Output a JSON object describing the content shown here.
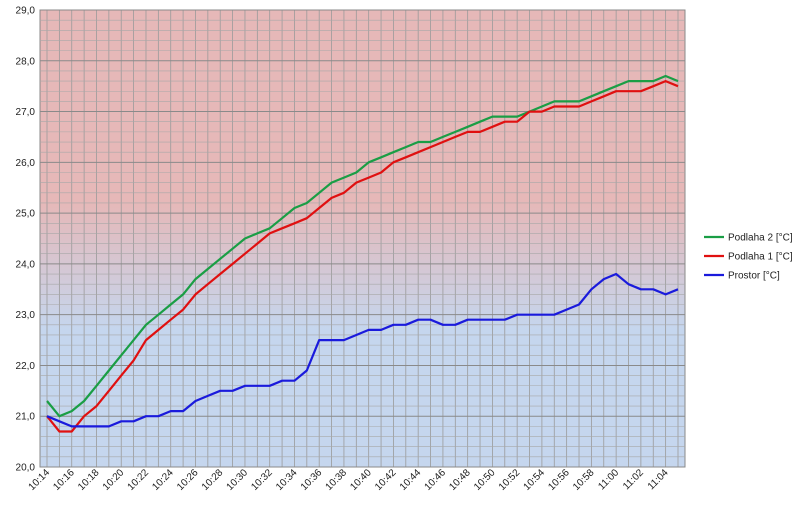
{
  "chart_data": {
    "type": "line",
    "title": "",
    "xlabel": "",
    "ylabel": "",
    "ylim": [
      20.0,
      29.0
    ],
    "y_ticks": [
      "20,0",
      "21,0",
      "22,0",
      "23,0",
      "24,0",
      "25,0",
      "26,0",
      "27,0",
      "28,0",
      "29,0"
    ],
    "x": [
      "10:14",
      "10:15",
      "10:16",
      "10:17",
      "10:18",
      "10:19",
      "10:20",
      "10:21",
      "10:22",
      "10:23",
      "10:24",
      "10:25",
      "10:26",
      "10:27",
      "10:28",
      "10:29",
      "10:30",
      "10:31",
      "10:32",
      "10:33",
      "10:34",
      "10:35",
      "10:36",
      "10:37",
      "10:38",
      "10:39",
      "10:40",
      "10:41",
      "10:42",
      "10:43",
      "10:44",
      "10:45",
      "10:46",
      "10:47",
      "10:48",
      "10:49",
      "10:50",
      "10:51",
      "10:52",
      "10:53",
      "10:54",
      "10:55",
      "10:56",
      "10:57",
      "10:58",
      "10:59",
      "11:00",
      "11:01",
      "11:02",
      "11:03",
      "11:04",
      "11:05"
    ],
    "x_tick_labels": [
      "10:14",
      "10:16",
      "10:18",
      "10:20",
      "10:22",
      "10:24",
      "10:26",
      "10:28",
      "10:30",
      "10:32",
      "10:34",
      "10:36",
      "10:38",
      "10:40",
      "10:42",
      "10:44",
      "10:46",
      "10:48",
      "10:50",
      "10:52",
      "10:54",
      "10:56",
      "10:58",
      "11:00",
      "11:02",
      "11:04"
    ],
    "grid": true,
    "background_gradient": {
      "top": "#e6b8b8",
      "bottom": "#c5d6ee"
    },
    "legend_position": "right",
    "series": [
      {
        "name": "Podlaha 2 [°C]",
        "color": "#1a9e45",
        "values": [
          21.3,
          21.0,
          21.1,
          21.3,
          21.6,
          21.9,
          22.2,
          22.5,
          22.8,
          23.0,
          23.2,
          23.4,
          23.7,
          23.9,
          24.1,
          24.3,
          24.5,
          24.6,
          24.7,
          24.9,
          25.1,
          25.2,
          25.4,
          25.6,
          25.7,
          25.8,
          26.0,
          26.1,
          26.2,
          26.3,
          26.4,
          26.4,
          26.5,
          26.6,
          26.7,
          26.8,
          26.9,
          26.9,
          26.9,
          27.0,
          27.1,
          27.2,
          27.2,
          27.2,
          27.3,
          27.4,
          27.5,
          27.6,
          27.6,
          27.6,
          27.7,
          27.6
        ]
      },
      {
        "name": "Podlaha 1 [°C]",
        "color": "#e01010",
        "values": [
          21.0,
          20.7,
          20.7,
          21.0,
          21.2,
          21.5,
          21.8,
          22.1,
          22.5,
          22.7,
          22.9,
          23.1,
          23.4,
          23.6,
          23.8,
          24.0,
          24.2,
          24.4,
          24.6,
          24.7,
          24.8,
          24.9,
          25.1,
          25.3,
          25.4,
          25.6,
          25.7,
          25.8,
          26.0,
          26.1,
          26.2,
          26.3,
          26.4,
          26.5,
          26.6,
          26.6,
          26.7,
          26.8,
          26.8,
          27.0,
          27.0,
          27.1,
          27.1,
          27.1,
          27.2,
          27.3,
          27.4,
          27.4,
          27.4,
          27.5,
          27.6,
          27.5
        ]
      },
      {
        "name": "Prostor [°C]",
        "color": "#1a1adc",
        "values": [
          21.0,
          20.9,
          20.8,
          20.8,
          20.8,
          20.8,
          20.9,
          20.9,
          21.0,
          21.0,
          21.1,
          21.1,
          21.3,
          21.4,
          21.5,
          21.5,
          21.6,
          21.6,
          21.6,
          21.7,
          21.7,
          21.9,
          22.5,
          22.5,
          22.5,
          22.6,
          22.7,
          22.7,
          22.8,
          22.8,
          22.9,
          22.9,
          22.8,
          22.8,
          22.9,
          22.9,
          22.9,
          22.9,
          23.0,
          23.0,
          23.0,
          23.0,
          23.1,
          23.2,
          23.5,
          23.7,
          23.8,
          23.6,
          23.5,
          23.5,
          23.4,
          23.5
        ]
      }
    ]
  }
}
